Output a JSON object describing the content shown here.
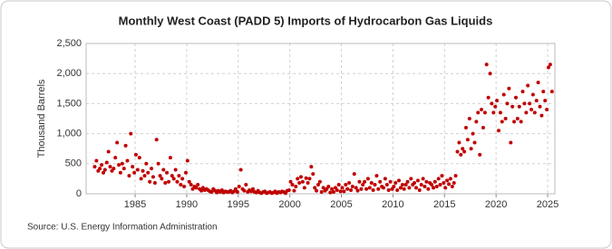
{
  "chart_data": {
    "type": "scatter",
    "title": "Monthly West Coast (PADD 5) Imports of Hydrocarbon Gas Liquids",
    "y_label": "Thousand Barrels",
    "source": "Source: U.S. Energy Information Administration",
    "color": "#c00000",
    "grid": true,
    "xlim": [
      1980.25,
      2025.7
    ],
    "xticks": [
      1985,
      1990,
      1995,
      2000,
      2005,
      2010,
      2015,
      2020,
      2025
    ],
    "ylim": [
      0,
      2500
    ],
    "yticks": [
      0,
      500,
      {
        "value": 1000,
        "label": "1,000"
      },
      {
        "value": 1500,
        "label": "1,500"
      },
      {
        "value": 2000,
        "label": "2,000"
      },
      {
        "value": 2500,
        "label": "2,500"
      }
    ],
    "x": [
      1981.08,
      1981.25,
      1981.42,
      1981.58,
      1981.75,
      1981.92,
      1982.08,
      1982.25,
      1982.42,
      1982.58,
      1982.75,
      1982.92,
      1983.08,
      1983.25,
      1983.42,
      1983.58,
      1983.75,
      1983.92,
      1984.08,
      1984.25,
      1984.42,
      1984.58,
      1984.75,
      1984.92,
      1985.08,
      1985.25,
      1985.42,
      1985.58,
      1985.75,
      1985.92,
      1986.08,
      1986.25,
      1986.42,
      1986.58,
      1986.75,
      1986.92,
      1987.08,
      1987.25,
      1987.42,
      1987.58,
      1987.75,
      1987.92,
      1988.08,
      1988.25,
      1988.42,
      1988.58,
      1988.75,
      1988.92,
      1989.08,
      1989.25,
      1989.42,
      1989.58,
      1989.75,
      1989.92,
      1990.08,
      1990.25,
      1990.42,
      1990.58,
      1990.75,
      1990.92,
      1991.08,
      1991.25,
      1991.42,
      1991.58,
      1991.75,
      1991.92,
      1992.08,
      1992.25,
      1992.42,
      1992.58,
      1992.75,
      1992.92,
      1993.08,
      1993.25,
      1993.42,
      1993.58,
      1993.75,
      1993.92,
      1994.08,
      1994.25,
      1994.42,
      1994.58,
      1994.75,
      1994.92,
      1995.08,
      1995.25,
      1995.42,
      1995.58,
      1995.75,
      1995.92,
      1996.08,
      1996.25,
      1996.42,
      1996.58,
      1996.75,
      1996.92,
      1997.08,
      1997.25,
      1997.42,
      1997.58,
      1997.75,
      1997.92,
      1998.08,
      1998.25,
      1998.42,
      1998.58,
      1998.75,
      1998.92,
      1999.08,
      1999.25,
      1999.42,
      1999.58,
      1999.75,
      1999.92,
      2000.08,
      2000.25,
      2000.42,
      2000.58,
      2000.75,
      2000.92,
      2001.08,
      2001.25,
      2001.42,
      2001.58,
      2001.75,
      2001.92,
      2002.08,
      2002.25,
      2002.42,
      2002.58,
      2002.75,
      2002.92,
      2003.08,
      2003.25,
      2003.42,
      2003.58,
      2003.75,
      2003.92,
      2004.08,
      2004.25,
      2004.42,
      2004.58,
      2004.75,
      2004.92,
      2005.08,
      2005.25,
      2005.42,
      2005.58,
      2005.75,
      2005.92,
      2006.08,
      2006.25,
      2006.42,
      2006.58,
      2006.75,
      2006.92,
      2007.08,
      2007.25,
      2007.42,
      2007.58,
      2007.75,
      2007.92,
      2008.08,
      2008.25,
      2008.42,
      2008.58,
      2008.75,
      2008.92,
      2009.08,
      2009.25,
      2009.42,
      2009.58,
      2009.75,
      2009.92,
      2010.08,
      2010.25,
      2010.42,
      2010.58,
      2010.75,
      2010.92,
      2011.08,
      2011.25,
      2011.42,
      2011.58,
      2011.75,
      2011.92,
      2012.08,
      2012.25,
      2012.42,
      2012.58,
      2012.75,
      2012.92,
      2013.08,
      2013.25,
      2013.42,
      2013.58,
      2013.75,
      2013.92,
      2014.08,
      2014.25,
      2014.42,
      2014.58,
      2014.75,
      2014.92,
      2015.08,
      2015.25,
      2015.42,
      2015.58,
      2015.75,
      2015.92,
      2016.08,
      2016.25,
      2016.42,
      2016.58,
      2016.75,
      2016.92,
      2017.08,
      2017.25,
      2017.42,
      2017.58,
      2017.75,
      2017.92,
      2018.08,
      2018.25,
      2018.42,
      2018.58,
      2018.75,
      2018.92,
      2019.08,
      2019.25,
      2019.42,
      2019.58,
      2019.75,
      2019.92,
      2020.08,
      2020.25,
      2020.42,
      2020.58,
      2020.75,
      2020.92,
      2021.08,
      2021.25,
      2021.42,
      2021.58,
      2021.75,
      2021.92,
      2022.08,
      2022.25,
      2022.42,
      2022.58,
      2022.75,
      2022.92,
      2023.08,
      2023.25,
      2023.42,
      2023.58,
      2023.75,
      2023.92,
      2024.08,
      2024.25,
      2024.42,
      2024.58,
      2024.75,
      2024.92,
      2025.08,
      2025.25,
      2025.42
    ],
    "values": [
      450,
      550,
      380,
      420,
      480,
      350,
      400,
      520,
      700,
      450,
      380,
      420,
      600,
      850,
      480,
      350,
      500,
      420,
      800,
      550,
      300,
      1000,
      450,
      350,
      650,
      400,
      600,
      250,
      380,
      300,
      500,
      350,
      200,
      420,
      280,
      180,
      900,
      500,
      300,
      250,
      400,
      180,
      350,
      200,
      600,
      300,
      250,
      400,
      200,
      300,
      150,
      250,
      120,
      350,
      550,
      200,
      150,
      80,
      120,
      100,
      150,
      80,
      50,
      100,
      60,
      80,
      60,
      40,
      30,
      80,
      50,
      20,
      50,
      30,
      60,
      20,
      40,
      30,
      30,
      50,
      20,
      40,
      80,
      30,
      120,
      400,
      80,
      50,
      150,
      30,
      60,
      40,
      80,
      30,
      20,
      50,
      20,
      10,
      30,
      40,
      10,
      20,
      30,
      10,
      20,
      40,
      10,
      30,
      20,
      40,
      30,
      10,
      50,
      60,
      200,
      150,
      50,
      120,
      250,
      180,
      280,
      200,
      100,
      260,
      180,
      250,
      450,
      330,
      100,
      50,
      150,
      200,
      30,
      100,
      50,
      80,
      120,
      20,
      80,
      30,
      100,
      60,
      150,
      40,
      100,
      40,
      150,
      80,
      180,
      60,
      120,
      330,
      100,
      50,
      200,
      80,
      150,
      200,
      80,
      250,
      100,
      180,
      60,
      150,
      300,
      80,
      200,
      120,
      100,
      250,
      150,
      60,
      200,
      80,
      120,
      180,
      60,
      220,
      100,
      150,
      80,
      150,
      200,
      100,
      250,
      150,
      180,
      100,
      220,
      60,
      150,
      250,
      120,
      200,
      80,
      180,
      150,
      100,
      200,
      120,
      250,
      150,
      300,
      180,
      100,
      220,
      160,
      250,
      120,
      180,
      300,
      700,
      850,
      650,
      750,
      700,
      1100,
      900,
      1250,
      750,
      1000,
      850,
      1200,
      1350,
      650,
      1400,
      1100,
      1350,
      2150,
      1600,
      2000,
      1500,
      1350,
      1450,
      1550,
      1050,
      1350,
      1200,
      1650,
      1250,
      1500,
      1750,
      850,
      1450,
      1200,
      1600,
      1250,
      1450,
      1200,
      1700,
      1500,
      1350,
      1800,
      1500,
      1400,
      1650,
      1350,
      1550,
      1850,
      1450,
      1300,
      1700,
      1550,
      1400,
      2100,
      2150,
      1700
    ]
  }
}
